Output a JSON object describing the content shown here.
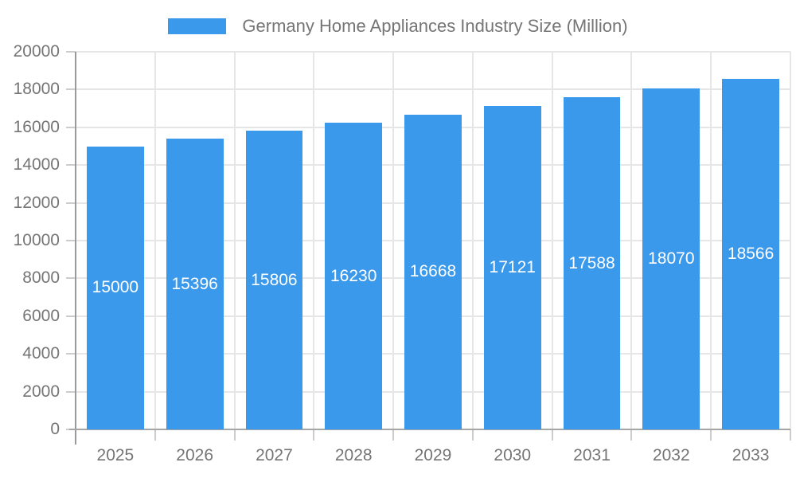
{
  "legend": {
    "position": "top",
    "swatch_color": "#3B99EC"
  },
  "chart_data": {
    "type": "bar",
    "title": "Germany Home Appliances Industry Size (Million)",
    "series_name": "Germany Home Appliances Industry Size (Million)",
    "categories": [
      "2025",
      "2026",
      "2027",
      "2028",
      "2029",
      "2030",
      "2031",
      "2032",
      "2033"
    ],
    "values": [
      15000,
      15396,
      15806,
      16230,
      16668,
      17121,
      17588,
      18070,
      18566
    ],
    "bar_value_labels": [
      "15000",
      "15396",
      "15806",
      "16230",
      "16668",
      "17121",
      "17588",
      "18070",
      "18566"
    ],
    "xlabel": "",
    "ylabel": "",
    "ylim": [
      0,
      20000
    ],
    "ytick_step": 2000,
    "yticks": [
      0,
      2000,
      4000,
      6000,
      8000,
      10000,
      12000,
      14000,
      16000,
      18000,
      20000
    ],
    "ytick_labels": [
      "0",
      "2000",
      "4000",
      "6000",
      "8000",
      "10000",
      "12000",
      "14000",
      "16000",
      "18000",
      "20000"
    ],
    "grid": true,
    "legend_position": "top",
    "value_labels_inside_bars": true
  },
  "colors": {
    "bar": "#3B99EC",
    "bar_label": "#ffffff",
    "legend_text": "#757575",
    "axis_text": "#757575",
    "y_axis_line": "#999999",
    "x_axis_line": "#a6a6a6",
    "tick": "#cccccc",
    "gridline": "#e6e6e6",
    "background": "#ffffff"
  }
}
